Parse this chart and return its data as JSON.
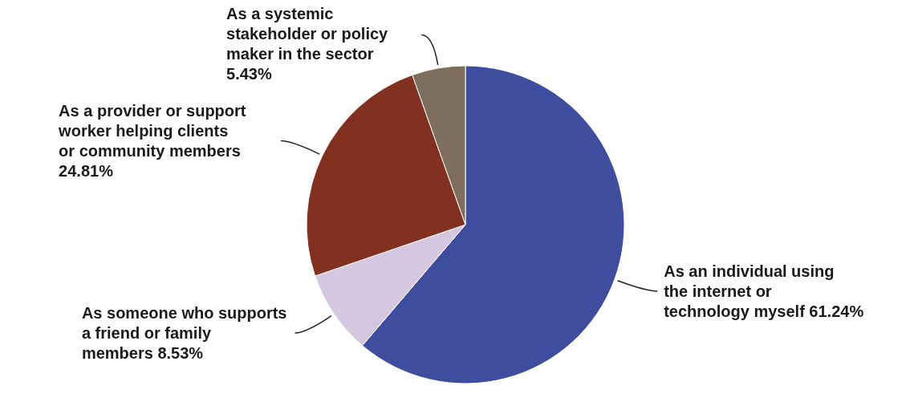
{
  "chart_data": {
    "type": "pie",
    "categories": [
      "As an individual using the internet or technology myself",
      "As someone who supports a friend or family members",
      "As a provider or support worker helping clients or community members",
      "As a systemic stakeholder or policy maker in the sector"
    ],
    "values": [
      61.24,
      8.53,
      24.81,
      5.43
    ],
    "colors": [
      "#3f4d9e",
      "#d6c7e1",
      "#82301f",
      "#7d6e5d"
    ],
    "value_labels": [
      "61.24%",
      "8.53%",
      "24.81%",
      "5.43%"
    ]
  }
}
